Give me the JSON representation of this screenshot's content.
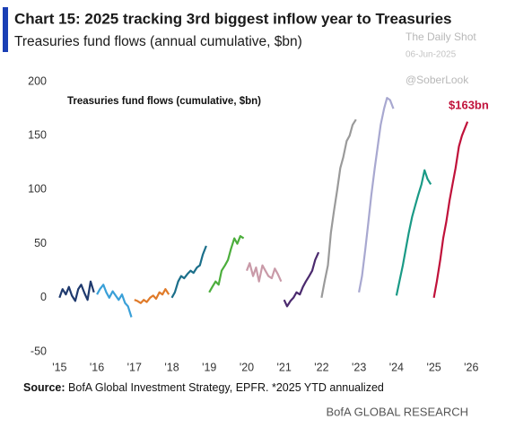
{
  "chart_data": {
    "type": "line",
    "title": "Chart 15: 2025 tracking 3rd biggest inflow year to Treasuries",
    "subtitle": "Treasuries fund flows (annual cumulative, $bn)",
    "inner_label": "Treasuries fund flows (cumulative, $bn)",
    "annotation": "$163bn",
    "annotation_color": "#c0113a",
    "xlim": [
      2014.8,
      2026.4
    ],
    "ylim": [
      -55,
      205
    ],
    "xticks": [
      {
        "value": 2015,
        "label": "'15"
      },
      {
        "value": 2016,
        "label": "'16"
      },
      {
        "value": 2017,
        "label": "'17"
      },
      {
        "value": 2018,
        "label": "'18"
      },
      {
        "value": 2019,
        "label": "'19"
      },
      {
        "value": 2020,
        "label": "'20"
      },
      {
        "value": 2021,
        "label": "'21"
      },
      {
        "value": 2022,
        "label": "'22"
      },
      {
        "value": 2023,
        "label": "'23"
      },
      {
        "value": 2024,
        "label": "'24"
      },
      {
        "value": 2025,
        "label": "'25"
      },
      {
        "value": 2026,
        "label": "'26"
      }
    ],
    "yticks": [
      200,
      150,
      100,
      50,
      0,
      -50
    ],
    "grid": false,
    "series": [
      {
        "color": "#1f3a6e",
        "x": [
          2015,
          2015.08,
          2015.17,
          2015.25,
          2015.33,
          2015.42,
          2015.5,
          2015.58,
          2015.67,
          2015.75,
          2015.83,
          2015.92
        ],
        "values": [
          0,
          8,
          3,
          10,
          2,
          -3,
          8,
          12,
          4,
          -2,
          15,
          5
        ]
      },
      {
        "color": "#3aa0d8",
        "x": [
          2016,
          2016.08,
          2016.17,
          2016.25,
          2016.33,
          2016.42,
          2016.5,
          2016.58,
          2016.67,
          2016.75,
          2016.83,
          2016.92
        ],
        "values": [
          3,
          8,
          12,
          5,
          0,
          6,
          2,
          -2,
          3,
          -5,
          -8,
          -18
        ]
      },
      {
        "color": "#e07b2a",
        "x": [
          2017,
          2017.08,
          2017.17,
          2017.25,
          2017.33,
          2017.42,
          2017.5,
          2017.58,
          2017.67,
          2017.75,
          2017.83,
          2017.92
        ],
        "values": [
          -2,
          -3,
          -5,
          -2,
          -4,
          0,
          2,
          -1,
          5,
          3,
          8,
          3
        ]
      },
      {
        "color": "#1b6f8a",
        "x": [
          2018,
          2018.08,
          2018.17,
          2018.25,
          2018.33,
          2018.42,
          2018.5,
          2018.58,
          2018.67,
          2018.75,
          2018.83,
          2018.92
        ],
        "values": [
          0,
          5,
          15,
          20,
          18,
          22,
          25,
          23,
          28,
          30,
          40,
          48
        ]
      },
      {
        "color": "#4cae3c",
        "x": [
          2019,
          2019.08,
          2019.17,
          2019.25,
          2019.33,
          2019.42,
          2019.5,
          2019.58,
          2019.67,
          2019.75,
          2019.83,
          2019.92
        ],
        "values": [
          5,
          10,
          15,
          12,
          25,
          30,
          35,
          45,
          55,
          50,
          57,
          55
        ]
      },
      {
        "color": "#c99aa8",
        "x": [
          2020,
          2020.08,
          2020.17,
          2020.25,
          2020.33,
          2020.42,
          2020.5,
          2020.58,
          2020.67,
          2020.75,
          2020.83,
          2020.92
        ],
        "values": [
          25,
          32,
          20,
          28,
          15,
          30,
          25,
          20,
          18,
          27,
          22,
          15
        ]
      },
      {
        "color": "#4b2a6e",
        "x": [
          2021,
          2021.08,
          2021.17,
          2021.25,
          2021.33,
          2021.42,
          2021.5,
          2021.58,
          2021.67,
          2021.75,
          2021.83,
          2021.92
        ],
        "values": [
          -2,
          -8,
          -3,
          0,
          5,
          3,
          10,
          15,
          20,
          25,
          35,
          42
        ]
      },
      {
        "color": "#9a9a9a",
        "x": [
          2022,
          2022.08,
          2022.17,
          2022.25,
          2022.33,
          2022.42,
          2022.5,
          2022.58,
          2022.67,
          2022.75,
          2022.83,
          2022.92
        ],
        "values": [
          0,
          15,
          30,
          60,
          80,
          100,
          120,
          130,
          145,
          150,
          160,
          165
        ]
      },
      {
        "color": "#a8a8d0",
        "x": [
          2023,
          2023.08,
          2023.17,
          2023.25,
          2023.33,
          2023.42,
          2023.5,
          2023.58,
          2023.67,
          2023.75,
          2023.83,
          2023.92
        ],
        "values": [
          5,
          20,
          45,
          70,
          95,
          120,
          140,
          160,
          175,
          185,
          183,
          175
        ]
      },
      {
        "color": "#1a9a86",
        "x": [
          2024,
          2024.08,
          2024.17,
          2024.25,
          2024.33,
          2024.42,
          2024.5,
          2024.58,
          2024.67,
          2024.75,
          2024.83,
          2024.92
        ],
        "values": [
          2,
          15,
          30,
          45,
          60,
          75,
          85,
          95,
          105,
          118,
          110,
          105
        ]
      },
      {
        "color": "#c0113a",
        "x": [
          2025,
          2025.08,
          2025.17,
          2025.25,
          2025.33,
          2025.42,
          2025.5,
          2025.58,
          2025.67,
          2025.75,
          2025.9
        ],
        "values": [
          0,
          15,
          35,
          55,
          70,
          90,
          105,
          120,
          140,
          150,
          163
        ]
      }
    ]
  },
  "watermarks": [
    "The Daily Shot",
    "06-Jun-2025",
    "@SoberLook"
  ],
  "source_label": "Source:",
  "source_text": "BofA Global Investment Strategy, EPFR. *2025 YTD annualized",
  "footer": "BofA GLOBAL RESEARCH"
}
